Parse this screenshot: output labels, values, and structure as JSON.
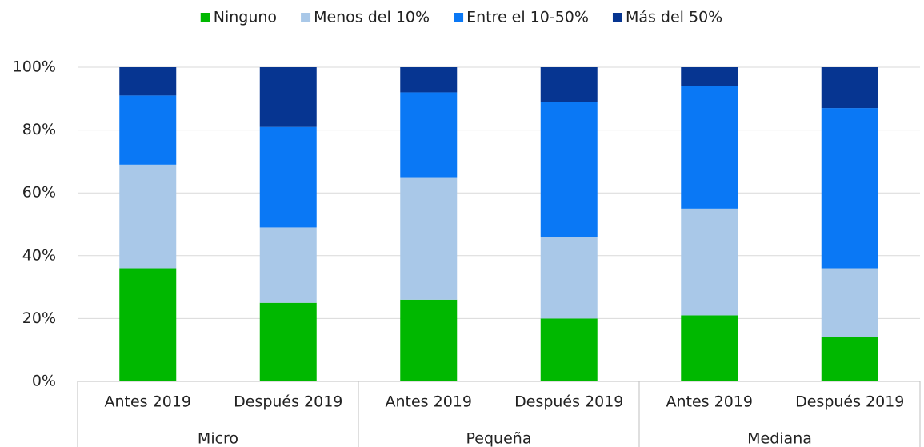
{
  "chart_data": {
    "type": "stacked_bar",
    "categories": [
      "Antes 2019",
      "Después 2019",
      "Antes 2019",
      "Después 2019",
      "Antes 2019",
      "Después 2019"
    ],
    "groups": [
      "Micro",
      "Pequeña",
      "Mediana"
    ],
    "series": [
      {
        "name": "Ninguno",
        "color": "#00b800",
        "values": [
          36,
          25,
          26,
          20,
          21,
          14
        ]
      },
      {
        "name": "Menos del 10%",
        "color": "#a9c8e8",
        "values": [
          33,
          24,
          39,
          26,
          34,
          22
        ]
      },
      {
        "name": "Entre el 10-50%",
        "color": "#0a78f5",
        "values": [
          22,
          32,
          27,
          43,
          39,
          51
        ]
      },
      {
        "name": "Más del 50%",
        "color": "#063591",
        "values": [
          9,
          19,
          8,
          11,
          6,
          13
        ]
      }
    ],
    "ylim": [
      0,
      100
    ],
    "yticks": [
      {
        "value": 0,
        "label": "0%"
      },
      {
        "value": 20,
        "label": "20%"
      },
      {
        "value": 40,
        "label": "40%"
      },
      {
        "value": 60,
        "label": "60%"
      },
      {
        "value": 80,
        "label": "80%"
      },
      {
        "value": 100,
        "label": "100%"
      }
    ],
    "grid": true,
    "legend": "top"
  }
}
